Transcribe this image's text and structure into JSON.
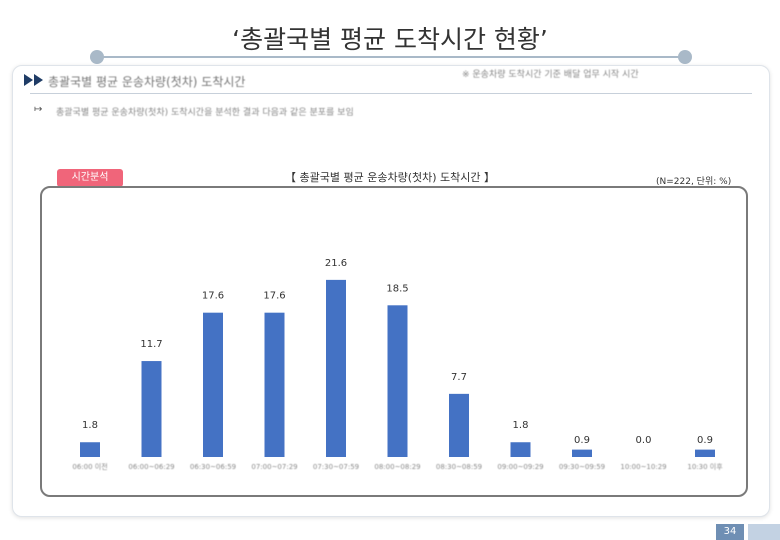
{
  "page": {
    "title": "‘총괄국별 평균 도착시간 현황’",
    "section_heading": "총괄국별 평균 운송차량(첫차) 도착시간",
    "top_note": "※ 운송차량 도착시간 기준 배달 업무 시작 시간",
    "subtext": "총괄국별 평균 운송차량(첫차) 도착시간을 분석한 결과 다음과 같은 분포를 보임",
    "page_number": "34"
  },
  "chart_badge": "시간분석",
  "chart_note": "(N=222, 단위: %)",
  "colors": {
    "bar": "#4472c4",
    "badge": "#f0657a",
    "rule": "#a9b9c8",
    "page_num": "#6f8fb4"
  },
  "chart_data": {
    "type": "bar",
    "title": "【 총괄국별 평균 운송차량(첫차) 도착시간 】",
    "categories": [
      "06:00 이전",
      "06:00~06:29",
      "06:30~06:59",
      "07:00~07:29",
      "07:30~07:59",
      "08:00~08:29",
      "08:30~08:59",
      "09:00~09:29",
      "09:30~09:59",
      "10:00~10:29",
      "10:30 이후"
    ],
    "values": [
      1.8,
      11.7,
      17.6,
      17.6,
      21.6,
      18.5,
      7.7,
      1.8,
      0.9,
      0.0,
      0.9
    ],
    "value_labels": [
      "1.8",
      "11.7",
      "17.6",
      "17.6",
      "21.6",
      "18.5",
      "7.7",
      "1.8",
      "0.9",
      "0.0",
      "0.9"
    ],
    "ylim": [
      0,
      25
    ],
    "grid": false,
    "legend": "none"
  }
}
